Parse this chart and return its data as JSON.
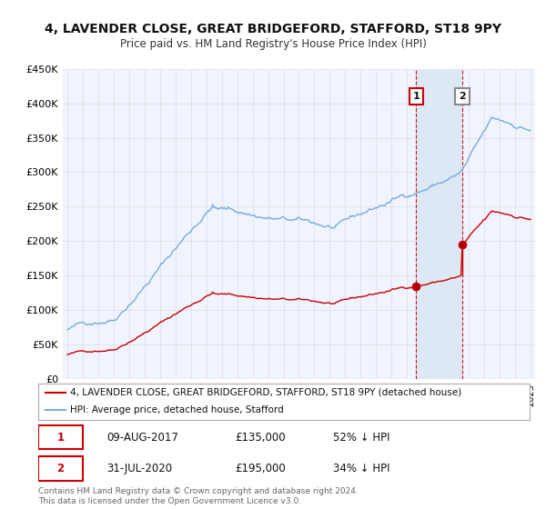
{
  "title_line1": "4, LAVENDER CLOSE, GREAT BRIDGEFORD, STAFFORD, ST18 9PY",
  "title_line2": "Price paid vs. HM Land Registry's House Price Index (HPI)",
  "hpi_color": "#7aaadd",
  "price_color": "#cc0000",
  "background_color": "#ffffff",
  "plot_bg_color": "#f0f4ff",
  "grid_color": "#dddddd",
  "shade_color": "#dde8f5",
  "ylim": [
    0,
    450000
  ],
  "yticks": [
    0,
    50000,
    100000,
    150000,
    200000,
    250000,
    300000,
    350000,
    400000,
    450000
  ],
  "ytick_labels": [
    "£0",
    "£50K",
    "£100K",
    "£150K",
    "£200K",
    "£250K",
    "£300K",
    "£350K",
    "£400K",
    "£450K"
  ],
  "legend_line1": "4, LAVENDER CLOSE, GREAT BRIDGEFORD, STAFFORD, ST18 9PY (detached house)",
  "legend_line2": "HPI: Average price, detached house, Stafford",
  "annotation1_date": "09-AUG-2017",
  "annotation1_price": "£135,000",
  "annotation1_pct": "52% ↓ HPI",
  "annotation1_value": 135000,
  "annotation1_year": 2017.6,
  "annotation2_date": "31-JUL-2020",
  "annotation2_price": "£195,000",
  "annotation2_pct": "34% ↓ HPI",
  "annotation2_value": 195000,
  "annotation2_year": 2020.58,
  "footer": "Contains HM Land Registry data © Crown copyright and database right 2024.\nThis data is licensed under the Open Government Licence v3.0.",
  "xlim_left": 1994.7,
  "xlim_right": 2025.3
}
